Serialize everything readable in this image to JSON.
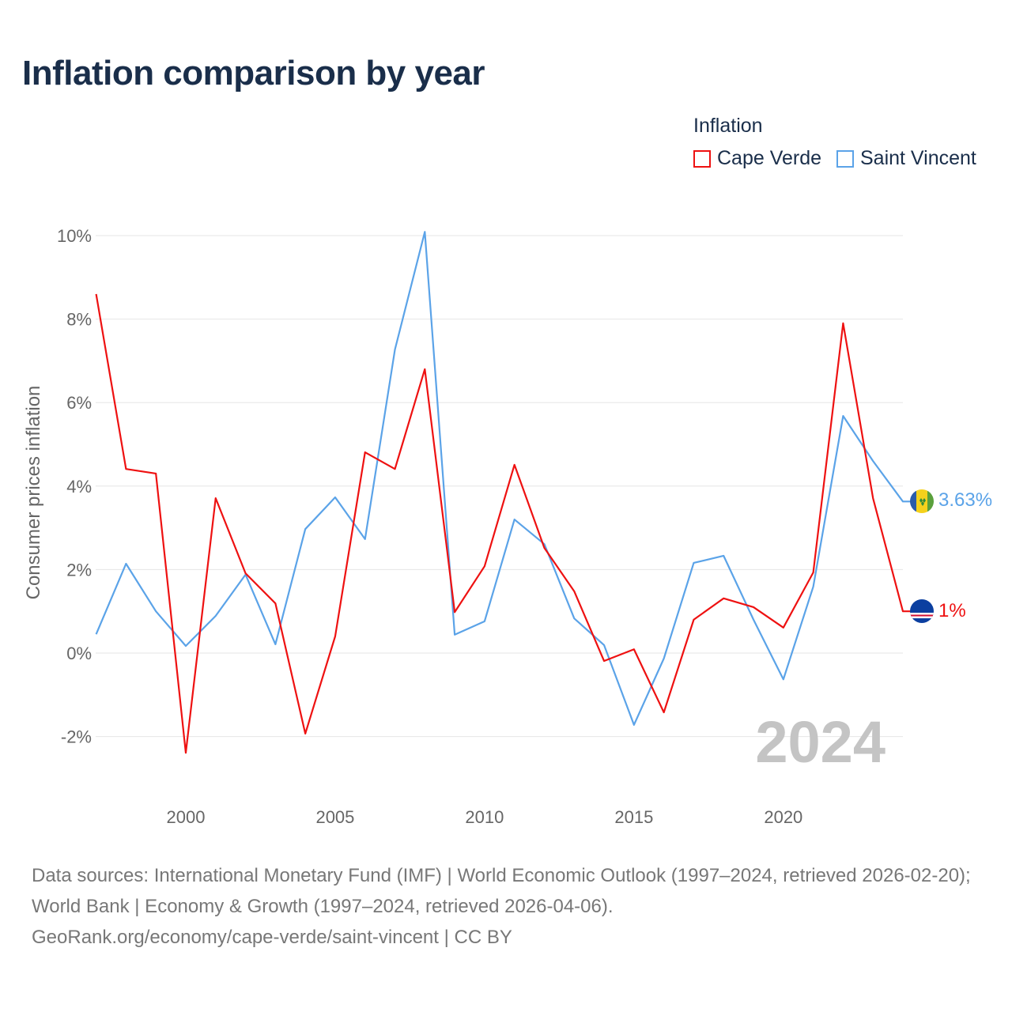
{
  "title": "Inflation comparison by year",
  "legend": {
    "title": "Inflation",
    "items": [
      {
        "name": "Cape Verde",
        "color": "#ee1111"
      },
      {
        "name": "Saint Vincent",
        "color": "#5ba3e8"
      }
    ]
  },
  "year_watermark": "2024",
  "footer": {
    "line1": "Data sources: International Monetary Fund (IMF) | World Economic Outlook (1997–2024, retrieved 2026-02-20); World Bank | Economy & Growth (1997–2024, retrieved 2026-04-06).",
    "line2": "GeoRank.org/economy/cape-verde/saint-vincent | CC BY"
  },
  "chart_data": {
    "type": "line",
    "title": "Inflation comparison by year",
    "xlabel": "",
    "ylabel": "Consumer prices inflation",
    "xlim": [
      1997,
      2024
    ],
    "ylim": [
      -2.9,
      10.2
    ],
    "yticks": [
      -2,
      0,
      2,
      4,
      6,
      8,
      10
    ],
    "ytick_labels": [
      "-2%",
      "0%",
      "2%",
      "4%",
      "6%",
      "8%",
      "10%"
    ],
    "xticks": [
      2000,
      2005,
      2010,
      2015,
      2020
    ],
    "xtick_labels": [
      "2000",
      "2005",
      "2010",
      "2015",
      "2020"
    ],
    "grid": true,
    "legend_position": "top-right",
    "x": [
      1997,
      1998,
      1999,
      2000,
      2001,
      2002,
      2003,
      2004,
      2005,
      2006,
      2007,
      2008,
      2009,
      2010,
      2011,
      2012,
      2013,
      2014,
      2015,
      2016,
      2017,
      2018,
      2019,
      2020,
      2021,
      2022,
      2023,
      2024
    ],
    "series": [
      {
        "name": "Cape Verde",
        "color": "#ee1111",
        "end_label": "1%",
        "values": [
          8.6,
          4.41,
          4.3,
          -2.39,
          3.71,
          1.91,
          1.19,
          -1.93,
          0.4,
          4.81,
          4.41,
          6.8,
          0.98,
          2.08,
          4.51,
          2.52,
          1.48,
          -0.19,
          0.09,
          -1.42,
          0.8,
          1.31,
          1.1,
          0.61,
          1.93,
          7.9,
          3.71,
          1.0
        ]
      },
      {
        "name": "Saint Vincent",
        "color": "#5ba3e8",
        "end_label": "3.63%",
        "values": [
          0.45,
          2.14,
          1.0,
          0.17,
          0.89,
          1.88,
          0.21,
          2.97,
          3.73,
          2.73,
          7.27,
          10.09,
          0.44,
          0.76,
          3.2,
          2.61,
          0.83,
          0.19,
          -1.72,
          -0.13,
          2.16,
          2.33,
          0.8,
          -0.63,
          1.59,
          5.68,
          4.6,
          3.63
        ]
      }
    ]
  }
}
